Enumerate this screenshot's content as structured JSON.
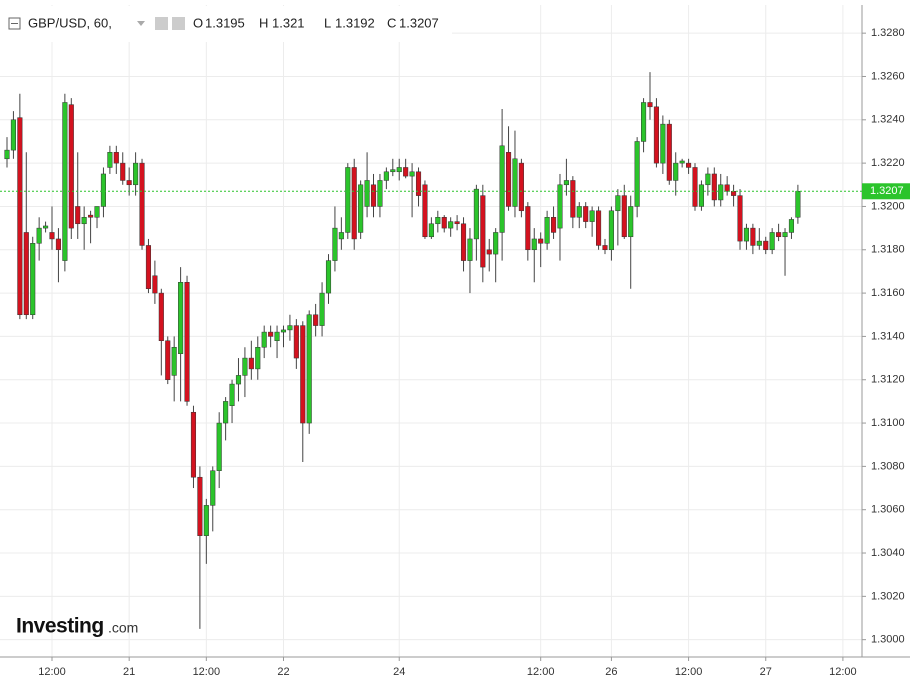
{
  "chart_data": {
    "type": "candlestick",
    "title": "GBP/USD, 60,",
    "ohlc_labels": [
      "O",
      "H",
      "L",
      "C"
    ],
    "watermark": "Investing",
    "watermark_suffix": ".com",
    "up_color": "#2bc42b",
    "down_color": "#d3121f",
    "grid": true,
    "ylim": [
      1.2992,
      1.3293
    ],
    "yticks": [
      {
        "value": 1.3,
        "label": "1.3000"
      },
      {
        "value": 1.302,
        "label": "1.3020"
      },
      {
        "value": 1.304,
        "label": "1.3040"
      },
      {
        "value": 1.306,
        "label": "1.3060"
      },
      {
        "value": 1.308,
        "label": "1.3080"
      },
      {
        "value": 1.31,
        "label": "1.3100"
      },
      {
        "value": 1.312,
        "label": "1.3120"
      },
      {
        "value": 1.314,
        "label": "1.3140"
      },
      {
        "value": 1.316,
        "label": "1.3160"
      },
      {
        "value": 1.318,
        "label": "1.3180"
      },
      {
        "value": 1.32,
        "label": "1.3200"
      },
      {
        "value": 1.322,
        "label": "1.3220"
      },
      {
        "value": 1.324,
        "label": "1.3240"
      },
      {
        "value": 1.326,
        "label": "1.3260"
      },
      {
        "value": 1.328,
        "label": "1.3280"
      }
    ],
    "categories": [
      null,
      null,
      null,
      null,
      null,
      null,
      null,
      "12:00",
      null,
      null,
      null,
      null,
      null,
      null,
      null,
      null,
      null,
      null,
      null,
      "21",
      null,
      null,
      null,
      null,
      null,
      null,
      null,
      null,
      null,
      null,
      null,
      "12:00",
      null,
      null,
      null,
      null,
      null,
      null,
      null,
      null,
      null,
      null,
      null,
      "22",
      null,
      null,
      null,
      null,
      null,
      null,
      null,
      null,
      null,
      null,
      null,
      null,
      null,
      null,
      null,
      null,
      null,
      "24",
      null,
      null,
      null,
      null,
      null,
      null,
      null,
      null,
      null,
      null,
      null,
      null,
      null,
      null,
      null,
      null,
      null,
      null,
      null,
      null,
      null,
      "12:00",
      null,
      null,
      null,
      null,
      null,
      null,
      null,
      null,
      null,
      null,
      "26",
      null,
      null,
      null,
      null,
      null,
      null,
      null,
      null,
      null,
      null,
      null,
      "12:00",
      null,
      null,
      null,
      null,
      null,
      null,
      null,
      null,
      null,
      null,
      null,
      "27",
      null,
      null,
      null,
      null,
      null,
      null,
      null,
      null,
      null,
      null,
      null,
      "12:00",
      null,
      null
    ],
    "open": [
      1.3222,
      1.3226,
      1.3241,
      1.3188,
      1.315,
      1.3183,
      1.319,
      1.3188,
      1.3185,
      1.3175,
      1.3247,
      1.32,
      1.3192,
      1.3196,
      1.3195,
      1.32,
      1.3218,
      1.3225,
      1.322,
      1.3212,
      1.321,
      1.322,
      1.3182,
      1.3168,
      1.316,
      1.3138,
      1.3122,
      1.3132,
      1.3165,
      1.3105,
      1.3075,
      1.3048,
      1.3062,
      1.3078,
      1.31,
      1.3108,
      1.3118,
      1.3122,
      1.313,
      1.3125,
      1.3135,
      1.3142,
      1.3138,
      1.3142,
      1.3143,
      1.3145,
      1.3145,
      1.31,
      1.315,
      1.3145,
      1.316,
      1.3175,
      1.3185,
      1.3188,
      1.3218,
      1.3188,
      1.32,
      1.321,
      1.32,
      1.3212,
      1.3216,
      1.3216,
      1.3218,
      1.3214,
      1.3216,
      1.321,
      1.3186,
      1.3192,
      1.3195,
      1.319,
      1.3193,
      1.3192,
      1.3175,
      1.3185,
      1.3205,
      1.318,
      1.3178,
      1.3188,
      1.3225,
      1.32,
      1.322,
      1.32,
      1.318,
      1.3185,
      1.3183,
      1.3195,
      1.319,
      1.321,
      1.3212,
      1.3195,
      1.32,
      1.3193,
      1.3198,
      1.3182,
      1.318,
      1.3198,
      1.3205,
      1.3186,
      1.32,
      1.323,
      1.3248,
      1.3246,
      1.322,
      1.3238,
      1.3212,
      1.322,
      1.322,
      1.3218,
      1.32,
      1.321,
      1.3215,
      1.3203,
      1.321,
      1.3207,
      1.3205,
      1.3184,
      1.319,
      1.3182,
      1.3184,
      1.318,
      1.3188,
      1.3186,
      1.3188,
      1.3195,
      null,
      null,
      null,
      null,
      null,
      null,
      null,
      null,
      null
    ],
    "high": [
      1.3232,
      1.3244,
      1.3252,
      1.3225,
      1.3186,
      1.3195,
      1.3193,
      1.32,
      1.319,
      1.3252,
      1.325,
      1.3225,
      1.32,
      1.3198,
      1.32,
      1.3218,
      1.3228,
      1.3228,
      1.3225,
      1.3218,
      1.3225,
      1.3222,
      1.3185,
      1.3175,
      1.3162,
      1.314,
      1.314,
      1.3172,
      1.3168,
      1.3108,
      1.308,
      1.3065,
      1.308,
      1.3105,
      1.3112,
      1.312,
      1.313,
      1.3135,
      1.3138,
      1.314,
      1.3145,
      1.3145,
      1.3145,
      1.3145,
      1.315,
      1.3148,
      1.3147,
      1.3152,
      1.3155,
      1.3165,
      1.3178,
      1.32,
      1.3195,
      1.322,
      1.3222,
      1.3212,
      1.3225,
      1.3215,
      1.3215,
      1.3218,
      1.3222,
      1.3222,
      1.3222,
      1.322,
      1.3218,
      1.3212,
      1.3195,
      1.3198,
      1.3196,
      1.3195,
      1.3196,
      1.3195,
      1.319,
      1.321,
      1.321,
      1.3185,
      1.319,
      1.3245,
      1.3237,
      1.3235,
      1.3222,
      1.3202,
      1.319,
      1.3188,
      1.3198,
      1.32,
      1.3215,
      1.3222,
      1.3214,
      1.3202,
      1.3202,
      1.32,
      1.32,
      1.3185,
      1.32,
      1.3208,
      1.321,
      1.3205,
      1.3232,
      1.325,
      1.3262,
      1.325,
      1.3242,
      1.324,
      1.3225,
      1.3222,
      1.3222,
      1.322,
      1.3212,
      1.3218,
      1.3218,
      1.3215,
      1.3214,
      1.321,
      1.3208,
      1.3192,
      1.3192,
      1.319,
      1.3186,
      1.319,
      1.3192,
      1.319,
      1.3195,
      1.321,
      null,
      null,
      null,
      null,
      null,
      null,
      null,
      null,
      null
    ],
    "low": [
      1.3218,
      1.3222,
      1.3148,
      1.3148,
      1.3148,
      1.3175,
      1.3188,
      1.318,
      1.3165,
      1.317,
      1.3185,
      1.3185,
      1.318,
      1.3183,
      1.319,
      1.3195,
      1.3215,
      1.3215,
      1.321,
      1.3205,
      1.3205,
      1.318,
      1.316,
      1.3155,
      1.3122,
      1.3118,
      1.311,
      1.311,
      1.3108,
      1.307,
      1.3005,
      1.3035,
      1.305,
      1.307,
      1.3092,
      1.31,
      1.311,
      1.3112,
      1.312,
      1.312,
      1.313,
      1.3135,
      1.313,
      1.3135,
      1.3138,
      1.3125,
      1.3082,
      1.3095,
      1.314,
      1.314,
      1.3155,
      1.317,
      1.318,
      1.3185,
      1.318,
      1.3185,
      1.3195,
      1.3195,
      1.3195,
      1.3208,
      1.3214,
      1.3212,
      1.3213,
      1.3195,
      1.32,
      1.3185,
      1.3185,
      1.3188,
      1.3188,
      1.3186,
      1.3189,
      1.317,
      1.316,
      1.3175,
      1.3165,
      1.317,
      1.3165,
      1.3175,
      1.3198,
      1.3195,
      1.3195,
      1.3175,
      1.3165,
      1.3172,
      1.318,
      1.3185,
      1.3175,
      1.3205,
      1.319,
      1.319,
      1.319,
      1.3186,
      1.318,
      1.3178,
      1.3175,
      1.3182,
      1.3185,
      1.3162,
      1.3195,
      1.3225,
      1.324,
      1.3218,
      1.3215,
      1.321,
      1.3205,
      1.3218,
      1.3215,
      1.3198,
      1.3198,
      1.3205,
      1.32,
      1.32,
      1.3205,
      1.32,
      1.318,
      1.318,
      1.3178,
      1.318,
      1.3178,
      1.3178,
      1.3184,
      1.3168,
      1.3185,
      1.3192,
      null,
      null,
      null,
      null,
      null,
      null,
      null,
      null,
      null
    ],
    "close": [
      1.3226,
      1.324,
      1.315,
      1.315,
      1.3183,
      1.319,
      1.3191,
      1.3185,
      1.318,
      1.3248,
      1.319,
      1.3192,
      1.3195,
      1.3195,
      1.32,
      1.3215,
      1.3225,
      1.322,
      1.3212,
      1.321,
      1.322,
      1.3182,
      1.3162,
      1.316,
      1.3138,
      1.312,
      1.3135,
      1.3165,
      1.311,
      1.3075,
      1.3048,
      1.3062,
      1.3078,
      1.31,
      1.311,
      1.3118,
      1.3122,
      1.313,
      1.3125,
      1.3135,
      1.3142,
      1.314,
      1.3142,
      1.3143,
      1.3145,
      1.313,
      1.31,
      1.315,
      1.3145,
      1.316,
      1.3175,
      1.319,
      1.3188,
      1.3218,
      1.3185,
      1.321,
      1.3212,
      1.32,
      1.3212,
      1.3216,
      1.3217,
      1.3218,
      1.3214,
      1.3216,
      1.3205,
      1.3186,
      1.3192,
      1.3195,
      1.319,
      1.3193,
      1.3192,
      1.3175,
      1.3185,
      1.3208,
      1.3172,
      1.3178,
      1.3188,
      1.3228,
      1.32,
      1.3222,
      1.3198,
      1.318,
      1.3185,
      1.3183,
      1.3195,
      1.3188,
      1.321,
      1.3212,
      1.3195,
      1.32,
      1.3193,
      1.3198,
      1.3182,
      1.318,
      1.3198,
      1.3205,
      1.3186,
      1.32,
      1.323,
      1.3248,
      1.3246,
      1.322,
      1.3238,
      1.3212,
      1.322,
      1.3221,
      1.3218,
      1.32,
      1.321,
      1.3215,
      1.3203,
      1.321,
      1.3207,
      1.3205,
      1.3184,
      1.319,
      1.3182,
      1.3184,
      1.318,
      1.3188,
      1.3186,
      1.3188,
      1.3194,
      1.3207,
      null,
      null,
      null,
      null,
      null,
      null,
      null,
      null,
      null
    ]
  }
}
